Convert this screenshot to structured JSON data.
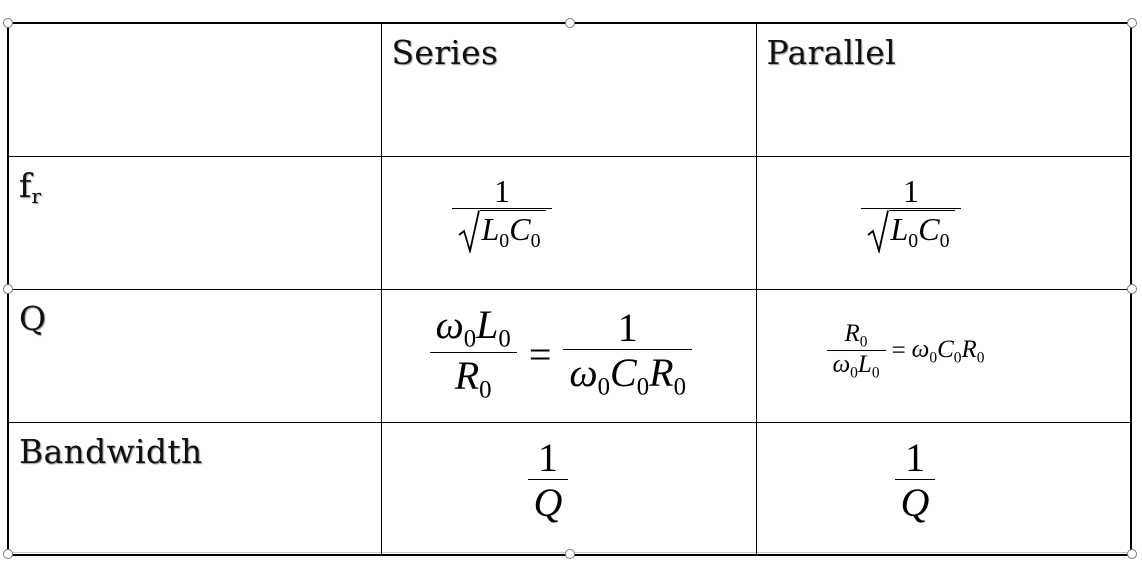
{
  "table": {
    "header": {
      "empty": "",
      "series": "Series",
      "parallel": "Parallel"
    },
    "rows": [
      {
        "label": "f",
        "label_sub": "r"
      },
      {
        "label": "Q"
      },
      {
        "label": "Bandwidth"
      }
    ],
    "formulas": {
      "fr_series": {
        "num": "1",
        "L": "L",
        "C": "C",
        "sub": "0"
      },
      "fr_parallel": {
        "num": "1",
        "L": "L",
        "C": "C",
        "sub": "0"
      },
      "q_series": {
        "omega": "ω",
        "L": "L",
        "R": "R",
        "C": "C",
        "sub": "0",
        "eq": "=",
        "one": "1"
      },
      "q_parallel": {
        "omega": "ω",
        "L": "L",
        "R": "R",
        "C": "C",
        "sub": "0",
        "eq": "="
      },
      "bw_series": {
        "num": "1",
        "den": "Q"
      },
      "bw_parallel": {
        "num": "1",
        "den": "Q"
      }
    }
  }
}
